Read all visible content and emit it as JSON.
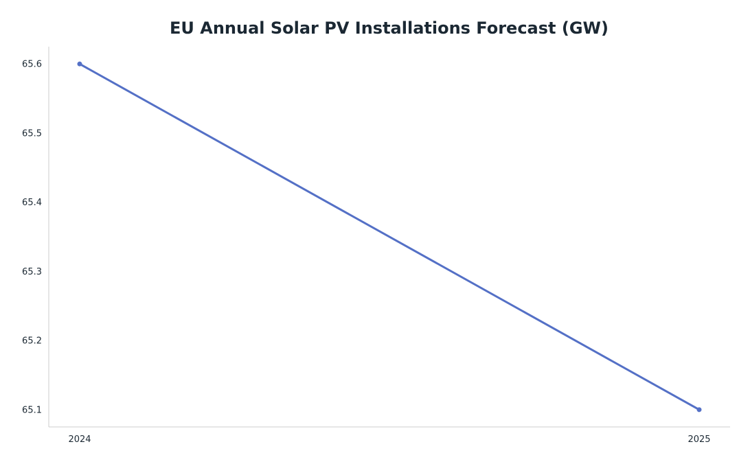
{
  "chart_data": {
    "type": "line",
    "title": "EU Annual Solar PV Installations Forecast (GW)",
    "xlabel": "",
    "ylabel": "",
    "x": [
      "2024",
      "2025"
    ],
    "series": [
      {
        "values": [
          65.6,
          65.1
        ],
        "color": "#5470c6"
      }
    ],
    "y_ticks": [
      "65.1",
      "65.2",
      "65.3",
      "65.4",
      "65.5",
      "65.6"
    ],
    "ylim": [
      65.075,
      65.625
    ],
    "grid": false,
    "legend": "none",
    "colors": {
      "axis": "#cccccc",
      "text": "#1b2833"
    }
  }
}
